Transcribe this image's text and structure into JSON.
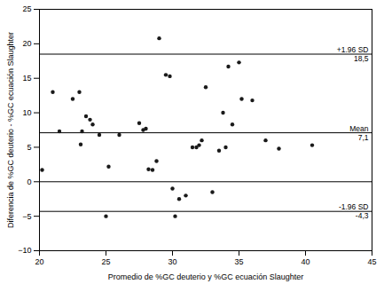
{
  "chart_data": {
    "type": "scatter",
    "x": [
      20.2,
      21.0,
      21.5,
      22.5,
      23.0,
      23.1,
      23.2,
      23.5,
      23.8,
      24.0,
      24.5,
      25.0,
      25.2,
      26.0,
      27.5,
      27.8,
      28.0,
      28.2,
      28.5,
      28.8,
      29.0,
      29.5,
      29.8,
      30.0,
      30.2,
      30.5,
      31.0,
      31.5,
      31.8,
      32.0,
      32.2,
      32.5,
      33.0,
      33.5,
      33.8,
      34.0,
      34.2,
      34.5,
      35.0,
      35.2,
      36.0,
      37.0,
      38.0,
      40.5
    ],
    "values": [
      1.7,
      13.0,
      7.3,
      12.0,
      13.0,
      5.4,
      7.3,
      9.5,
      9.0,
      8.3,
      6.8,
      -5.0,
      2.2,
      6.8,
      8.5,
      7.5,
      7.7,
      1.8,
      1.7,
      3.0,
      20.8,
      15.5,
      15.3,
      -1.0,
      -5.0,
      -2.5,
      -2.0,
      5.0,
      5.0,
      5.3,
      6.0,
      13.7,
      -1.5,
      4.5,
      10.0,
      5.0,
      16.7,
      8.3,
      17.3,
      12.0,
      11.8,
      6.0,
      4.8,
      5.3
    ],
    "color": "#1a1a1a",
    "marker": "circle",
    "reference_lines": [
      {
        "y": 18.5,
        "label_above": "+1.96 SD",
        "label_below": "18,5",
        "color": "#000000"
      },
      {
        "y": 7.1,
        "label_above": "Mean",
        "label_below": "7,1",
        "color": "#000000"
      },
      {
        "y": -4.3,
        "label_above": "-1.96 SD",
        "label_below": "-4,3",
        "color": "#000000"
      },
      {
        "y": 0,
        "color": "#000000"
      }
    ],
    "xlabel": "Promedio de %GC deuterio y %GC ecuación Slaughter",
    "ylabel": "Diferencia de %GC deuterio - %GC ecuación Slaughter",
    "xlim": [
      20,
      45
    ],
    "ylim": [
      -10,
      25
    ],
    "xticks": [
      20,
      25,
      30,
      35,
      40,
      45
    ],
    "yticks": [
      -10,
      -5,
      0,
      5,
      10,
      15,
      20,
      25
    ],
    "grid": false
  }
}
